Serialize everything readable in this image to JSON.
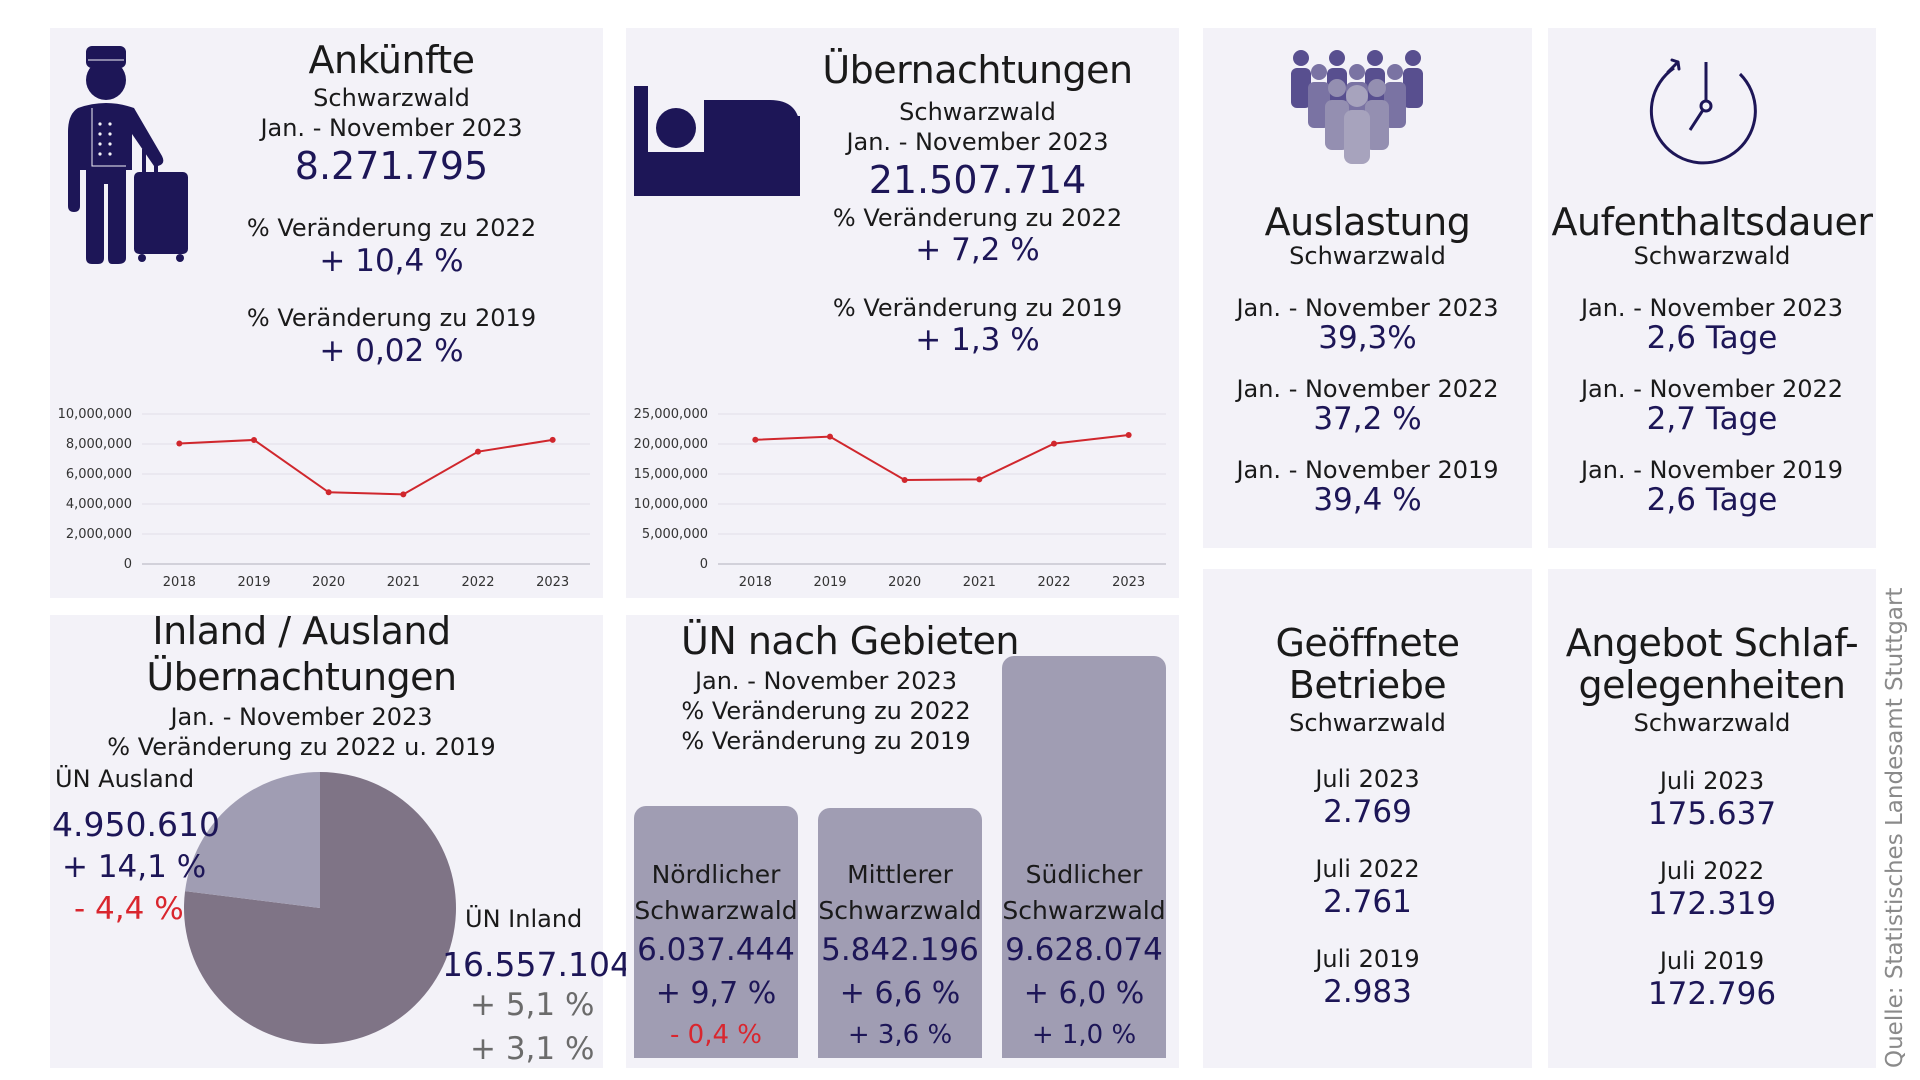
{
  "colors": {
    "navy": "#1d1657",
    "red": "#d9262e",
    "line": "#d0272d",
    "panel": "#f3f2f8",
    "pie_inland": "#7f7486",
    "pie_ausland": "#a09db3",
    "bar": "#a09db3"
  },
  "ankuenfte": {
    "icon": "bellboy-icon",
    "title": "Ankünfte",
    "region": "Schwarzwald",
    "period": "Jan. - November 2023",
    "value": "8.271.795",
    "change_2022_label": "% Veränderung zu 2022",
    "change_2022": "+ 10,4 %",
    "change_2019_label": "% Veränderung zu 2019",
    "change_2019": "+ 0,02 %"
  },
  "uebernachtungen": {
    "icon": "bed-icon",
    "title": "Übernachtungen",
    "region": "Schwarzwald",
    "period": "Jan. - November 2023",
    "value": "21.507.714",
    "change_2022_label": "% Veränderung zu 2022",
    "change_2022": "+ 7,2 %",
    "change_2019_label": "% Veränderung zu 2019",
    "change_2019": "+ 1,3 %"
  },
  "auslastung": {
    "icon": "people-group-icon",
    "title": "Auslastung",
    "region": "Schwarzwald",
    "rows": [
      {
        "label": "Jan. - November 2023",
        "value": "39,3%"
      },
      {
        "label": "Jan. - November 2022",
        "value": "37,2 %"
      },
      {
        "label": "Jan. - November 2019",
        "value": "39,4 %"
      }
    ]
  },
  "aufenthaltsdauer": {
    "icon": "clock-icon",
    "title": "Aufenthaltsdauer",
    "region": "Schwarzwald",
    "rows": [
      {
        "label": "Jan. - November 2023",
        "value": "2,6 Tage"
      },
      {
        "label": "Jan. - November 2022",
        "value": "2,7 Tage"
      },
      {
        "label": "Jan. - November 2019",
        "value": "2,6 Tage"
      }
    ]
  },
  "inland_ausland": {
    "title_line1": "Inland / Ausland",
    "title_line2": "Übernachtungen",
    "period": "Jan. - November 2023",
    "subtitle": "% Veränderung zu 2022 u. 2019",
    "ausland": {
      "label": "ÜN Ausland",
      "value": "4.950.610",
      "change_2022": "+ 14,1 %",
      "change_2019": "- 4,4 %"
    },
    "inland": {
      "label": "ÜN Inland",
      "value": "16.557.104",
      "change_2022": "+ 5,1 %",
      "change_2019": "+ 3,1 %"
    }
  },
  "gebiete": {
    "title": "ÜN nach Gebieten",
    "period": "Jan. - November 2023",
    "change_2022_label": "% Veränderung zu 2022",
    "change_2019_label": "% Veränderung zu 2019",
    "regions": [
      {
        "line1": "Nördlicher",
        "line2": "Schwarzwald",
        "value": "6.037.444",
        "change_2022": "+ 9,7 %",
        "change_2019": "- 0,4 %",
        "negative_2019": true
      },
      {
        "line1": "Mittlerer",
        "line2": "Schwarzwald",
        "value": "5.842.196",
        "change_2022": "+ 6,6 %",
        "change_2019": "+ 3,6 %",
        "negative_2019": false
      },
      {
        "line1": "Südlicher",
        "line2": "Schwarzwald",
        "value": "9.628.074",
        "change_2022": "+ 6,0 %",
        "change_2019": "+ 1,0 %",
        "negative_2019": false
      }
    ]
  },
  "betriebe": {
    "title_line1": "Geöffnete",
    "title_line2": "Betriebe",
    "region": "Schwarzwald",
    "rows": [
      {
        "label": "Juli 2023",
        "value": "2.769"
      },
      {
        "label": "Juli 2022",
        "value": "2.761"
      },
      {
        "label": "Juli 2019",
        "value": "2.983"
      }
    ]
  },
  "schlafgelegenheiten": {
    "title_line1": "Angebot Schlaf-",
    "title_line2": "gelegenheiten",
    "region": "Schwarzwald",
    "rows": [
      {
        "label": "Juli 2023",
        "value": "175.637"
      },
      {
        "label": "Juli 2022",
        "value": "172.319"
      },
      {
        "label": "Juli 2019",
        "value": "172.796"
      }
    ]
  },
  "source": "Quelle:  Statistisches Landesamt Stuttgart",
  "chart_data": [
    {
      "type": "line",
      "title": "Ankünfte Schwarzwald",
      "x": [
        "2018",
        "2019",
        "2020",
        "2021",
        "2022",
        "2023"
      ],
      "series": [
        {
          "name": "Ankünfte",
          "values": [
            8030000,
            8270000,
            4780000,
            4640000,
            7490000,
            8271795
          ]
        }
      ],
      "yticks": [
        "0",
        "2,000,000",
        "4,000,000",
        "6,000,000",
        "8,000,000",
        "10,000,000"
      ],
      "ylim": [
        0,
        10000000
      ],
      "grid": true,
      "xlabel": "",
      "ylabel": ""
    },
    {
      "type": "line",
      "title": "Übernachtungen Schwarzwald",
      "x": [
        "2018",
        "2019",
        "2020",
        "2021",
        "2022",
        "2023"
      ],
      "series": [
        {
          "name": "Übernachtungen",
          "values": [
            20700000,
            21230000,
            14000000,
            14100000,
            20060000,
            21507714
          ]
        }
      ],
      "yticks": [
        "0",
        "5,000,000",
        "10,000,000",
        "15,000,000",
        "20,000,000",
        "25,000,000"
      ],
      "ylim": [
        0,
        25000000
      ],
      "grid": true,
      "xlabel": "",
      "ylabel": ""
    },
    {
      "type": "pie",
      "title": "Inland / Ausland Übernachtungen",
      "categories": [
        "ÜN Inland",
        "ÜN Ausland"
      ],
      "values": [
        16557104,
        4950610
      ]
    },
    {
      "type": "bar",
      "title": "ÜN nach Gebieten",
      "categories": [
        "Nördlicher Schwarzwald",
        "Mittlerer Schwarzwald",
        "Südlicher Schwarzwald"
      ],
      "values": [
        6037444,
        5842196,
        9628074
      ]
    }
  ]
}
